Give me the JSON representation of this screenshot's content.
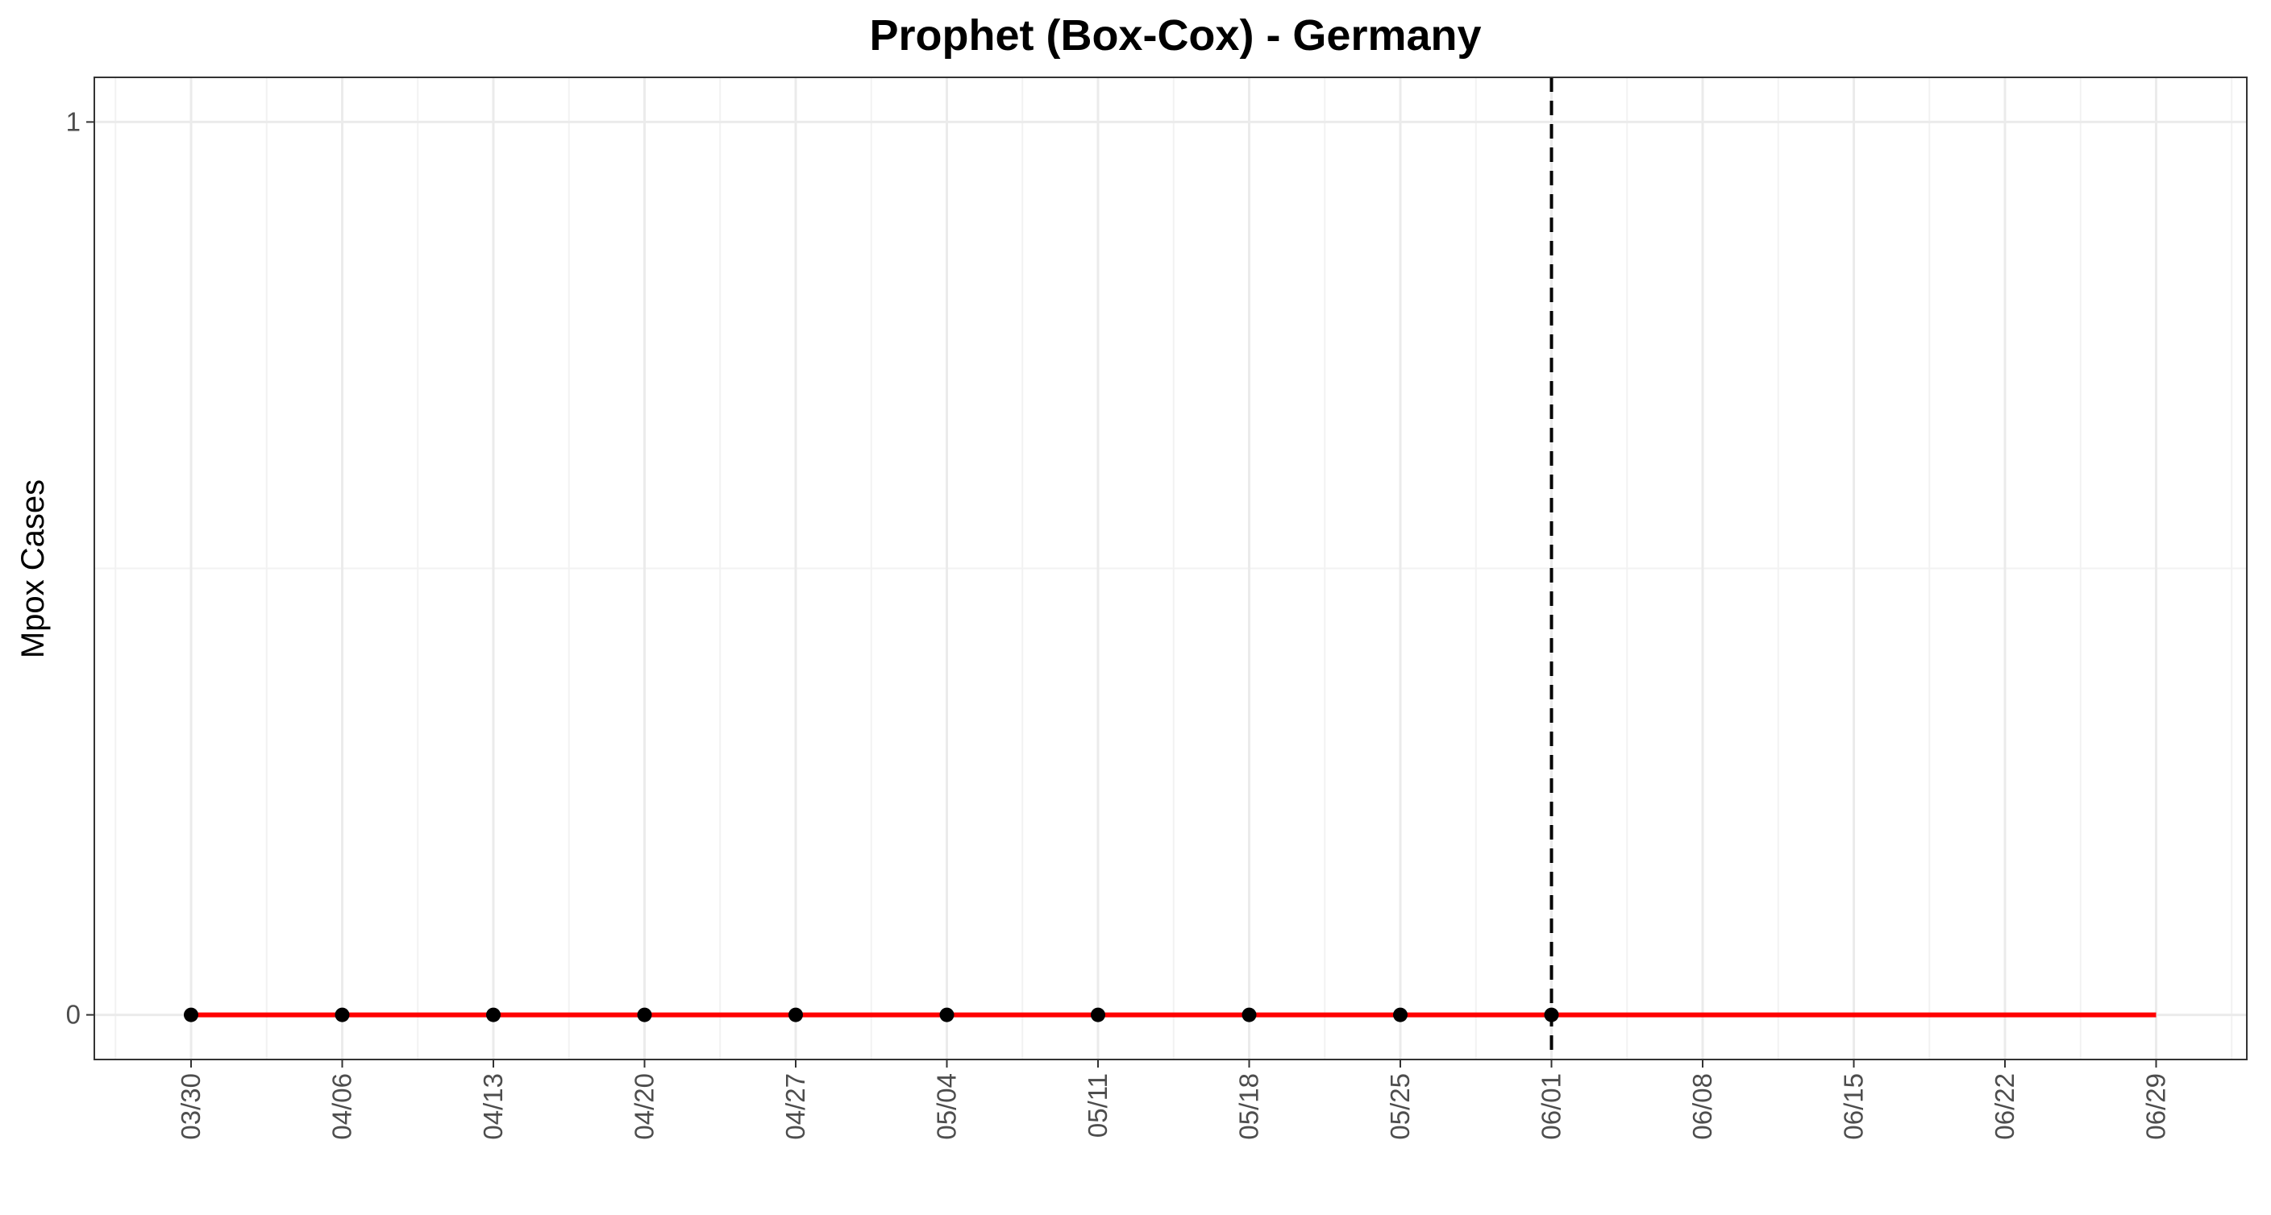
{
  "chart_data": {
    "type": "line",
    "title": "Prophet (Box-Cox) - Germany",
    "xlabel": "",
    "ylabel": "Mpox Cases",
    "x_ticks": [
      "03/30",
      "04/06",
      "04/13",
      "04/20",
      "04/27",
      "05/04",
      "05/11",
      "05/18",
      "05/25",
      "06/01",
      "06/08",
      "06/15",
      "06/22",
      "06/29"
    ],
    "y_ticks": [
      "0",
      "1"
    ],
    "ylim": [
      -0.05,
      1.05
    ],
    "grid": true,
    "series": [
      {
        "kind": "observed-points",
        "color": "#000000",
        "points": [
          {
            "x": "03/30",
            "y": 0
          },
          {
            "x": "04/06",
            "y": 0
          },
          {
            "x": "04/13",
            "y": 0
          },
          {
            "x": "04/20",
            "y": 0
          },
          {
            "x": "04/27",
            "y": 0
          },
          {
            "x": "05/04",
            "y": 0
          },
          {
            "x": "05/11",
            "y": 0
          },
          {
            "x": "05/18",
            "y": 0
          },
          {
            "x": "05/25",
            "y": 0
          },
          {
            "x": "06/01",
            "y": 0
          }
        ]
      },
      {
        "kind": "forecast-line",
        "color": "#ff0000",
        "points": [
          {
            "x": "03/30",
            "y": 0
          },
          {
            "x": "04/06",
            "y": 0
          },
          {
            "x": "04/13",
            "y": 0
          },
          {
            "x": "04/20",
            "y": 0
          },
          {
            "x": "04/27",
            "y": 0
          },
          {
            "x": "05/04",
            "y": 0
          },
          {
            "x": "05/11",
            "y": 0
          },
          {
            "x": "05/18",
            "y": 0
          },
          {
            "x": "05/25",
            "y": 0
          },
          {
            "x": "06/01",
            "y": 0
          },
          {
            "x": "06/08",
            "y": 0
          },
          {
            "x": "06/15",
            "y": 0
          },
          {
            "x": "06/22",
            "y": 0
          },
          {
            "x": "06/29",
            "y": 0
          }
        ]
      }
    ],
    "reference_line": {
      "x": "06/01",
      "style": "dashed",
      "color": "#000000"
    }
  }
}
